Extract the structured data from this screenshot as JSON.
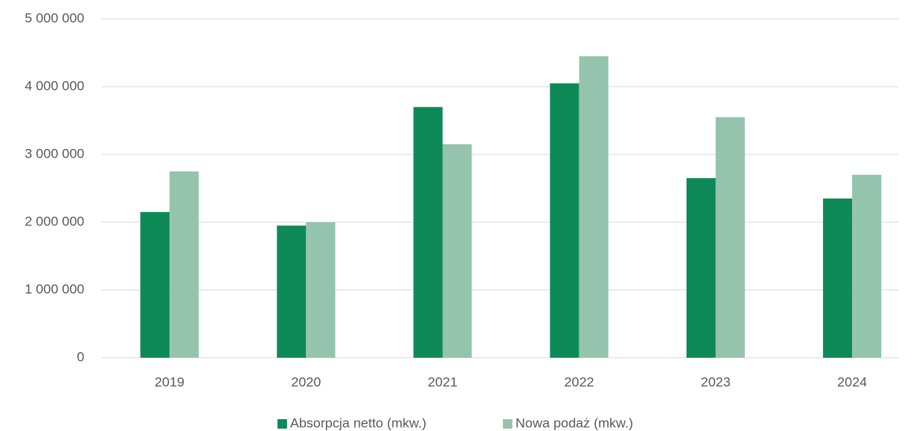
{
  "chart_data": {
    "type": "bar",
    "categories": [
      "2019",
      "2020",
      "2021",
      "2022",
      "2023",
      "2024"
    ],
    "series": [
      {
        "name": "Absorpcja netto (mkw.)",
        "color": "#0e8a58",
        "values": [
          2150000,
          1950000,
          3700000,
          4050000,
          2650000,
          2350000
        ]
      },
      {
        "name": "Nowa podaż (mkw.)",
        "color": "#94c4ad",
        "values": [
          2750000,
          2000000,
          3150000,
          4450000,
          3550000,
          2700000
        ]
      }
    ],
    "ylim": [
      0,
      5000000
    ],
    "yticks": [
      0,
      {
        "value": 1000000,
        "label": "1 000 000"
      },
      {
        "value": 2000000,
        "label": "2 000 000"
      },
      {
        "value": 3000000,
        "label": "3 000 000"
      },
      {
        "value": 4000000,
        "label": "4 000 000"
      },
      {
        "value": 5000000,
        "label": "5 000 000"
      }
    ],
    "grid": true,
    "legend": "bottom"
  }
}
